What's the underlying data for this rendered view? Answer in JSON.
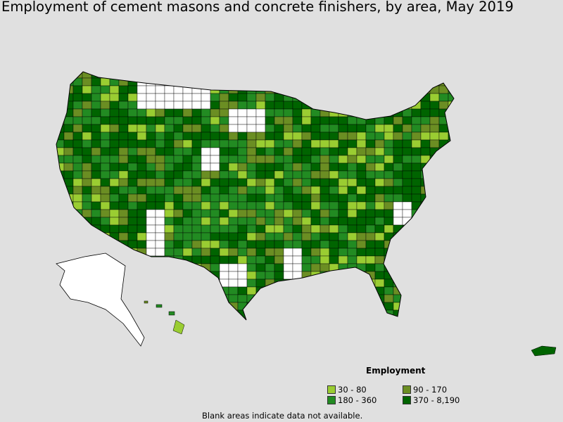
{
  "title": "Employment of cement masons and concrete finishers, by area, May 2019",
  "legend": {
    "title": "Employment",
    "items": [
      {
        "label": "30 - 80",
        "color": "#9acd32"
      },
      {
        "label": "90 - 170",
        "color": "#6b8e23"
      },
      {
        "label": "180 - 360",
        "color": "#228b22"
      },
      {
        "label": "370 - 8,190",
        "color": "#006400"
      }
    ]
  },
  "footnote": "Blank areas indicate data not available.",
  "blank_color": "#ffffff"
}
